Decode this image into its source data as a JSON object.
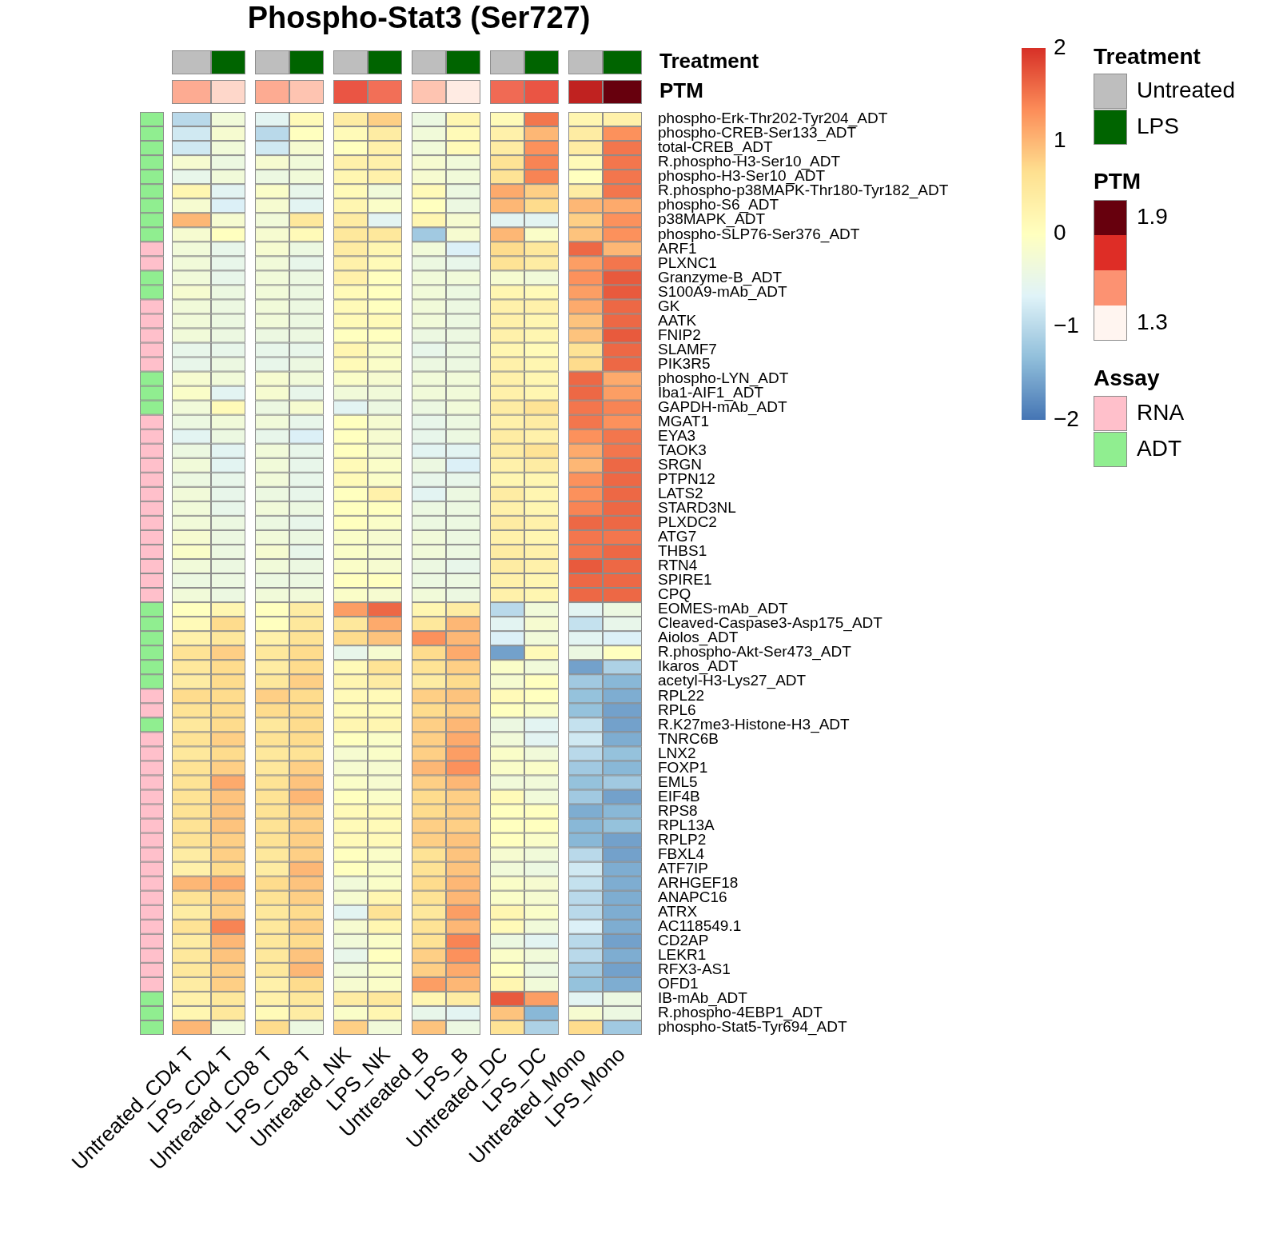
{
  "chart_data": {
    "type": "heatmap",
    "title": "Phospho-Stat3 (Ser727)",
    "columns": [
      "Untreated_CD4 T",
      "LPS_CD4 T",
      "Untreated_CD8 T",
      "LPS_CD8 T",
      "Untreated_NK",
      "LPS_NK",
      "Untreated_B",
      "LPS_B",
      "Untreated_DC",
      "LPS_DC",
      "Untreated_Mono",
      "LPS_Mono"
    ],
    "rows": [
      "phospho-Erk-Thr202-Tyr204_ADT",
      "phospho-CREB-Ser133_ADT",
      "total-CREB_ADT",
      "R.phospho-H3-Ser10_ADT",
      "phospho-H3-Ser10_ADT",
      "R.phospho-p38MAPK-Thr180-Tyr182_ADT",
      "phospho-S6_ADT",
      "p38MAPK_ADT",
      "phospho-SLP76-Ser376_ADT",
      "ARF1",
      "PLXNC1",
      "Granzyme-B_ADT",
      "S100A9-mAb_ADT",
      "GK",
      "AATK",
      "FNIP2",
      "SLAMF7",
      "PIK3R5",
      "phospho-LYN_ADT",
      "Iba1-AIF1_ADT",
      "GAPDH-mAb_ADT",
      "MGAT1",
      "EYA3",
      "TAOK3",
      "SRGN",
      "PTPN12",
      "LATS2",
      "STARD3NL",
      "PLXDC2",
      "ATG7",
      "THBS1",
      "RTN4",
      "SPIRE1",
      "CPQ",
      "EOMES-mAb_ADT",
      "Cleaved-Caspase3-Asp175_ADT",
      "Aiolos_ADT",
      "R.phospho-Akt-Ser473_ADT",
      "Ikaros_ADT",
      "acetyl-H3-Lys27_ADT",
      "RPL22",
      "RPL6",
      "R.K27me3-Histone-H3_ADT",
      "TNRC6B",
      "LNX2",
      "FOXP1",
      "EML5",
      "EIF4B",
      "RPS8",
      "RPL13A",
      "RPLP2",
      "FBXL4",
      "ATF7IP",
      "ARHGEF18",
      "ANAPC16",
      "ATRX",
      "AC118549.1",
      "CD2AP",
      "LEKR1",
      "RFX3-AS1",
      "OFD1",
      "IB-mAb_ADT",
      "R.phospho-4EBP1_ADT",
      "phospho-Stat5-Tyr694_ADT"
    ],
    "values": [
      [
        -1.0,
        -0.3,
        -0.6,
        0.1,
        0.4,
        0.8,
        -0.4,
        0.2,
        0.1,
        1.5,
        0.2,
        0.3
      ],
      [
        -0.8,
        -0.2,
        -1.0,
        0.0,
        0.1,
        0.4,
        -0.3,
        0.1,
        0.3,
        1.0,
        0.4,
        1.3
      ],
      [
        -0.8,
        -0.3,
        -0.8,
        -0.2,
        0.0,
        0.3,
        -0.3,
        0.1,
        0.4,
        1.3,
        0.4,
        1.5
      ],
      [
        -0.2,
        -0.4,
        -0.2,
        -0.3,
        0.3,
        0.3,
        -0.2,
        -0.3,
        0.6,
        1.4,
        0.1,
        1.5
      ],
      [
        -0.5,
        -0.3,
        -0.4,
        -0.3,
        0.2,
        0.3,
        -0.2,
        -0.3,
        0.6,
        1.4,
        0.0,
        1.5
      ],
      [
        0.2,
        -0.6,
        -0.1,
        -0.5,
        0.1,
        -0.3,
        0.1,
        -0.4,
        1.1,
        0.8,
        0.4,
        1.5
      ],
      [
        -0.2,
        -0.7,
        -0.2,
        -0.6,
        0.2,
        -0.1,
        0.0,
        -0.4,
        1.0,
        0.7,
        1.0,
        1.1
      ],
      [
        1.0,
        -0.2,
        -0.3,
        0.5,
        0.4,
        -0.6,
        0.2,
        -0.2,
        -0.6,
        -0.6,
        0.8,
        1.3
      ],
      [
        -0.2,
        0.0,
        -0.2,
        0.1,
        0.5,
        0.5,
        -1.2,
        -0.2,
        1.0,
        -0.1,
        0.9,
        1.3
      ],
      [
        -0.3,
        -0.5,
        -0.2,
        -0.4,
        0.4,
        0.2,
        -0.3,
        -0.7,
        0.7,
        0.5,
        1.6,
        1.0
      ],
      [
        -0.3,
        -0.5,
        -0.3,
        -0.5,
        0.3,
        0.1,
        -0.4,
        -0.5,
        0.6,
        0.4,
        1.2,
        1.5
      ],
      [
        -0.3,
        -0.5,
        -0.3,
        -0.4,
        0.3,
        0.0,
        -0.3,
        -0.3,
        -0.2,
        -0.3,
        1.3,
        1.7
      ],
      [
        -0.2,
        -0.4,
        -0.3,
        -0.4,
        0.1,
        0.0,
        -0.3,
        -0.4,
        0.2,
        0.1,
        1.2,
        1.7
      ],
      [
        -0.3,
        -0.4,
        -0.3,
        -0.4,
        0.1,
        0.0,
        -0.3,
        -0.4,
        0.3,
        0.3,
        1.1,
        1.6
      ],
      [
        -0.3,
        -0.4,
        -0.3,
        -0.4,
        0.1,
        0.1,
        -0.3,
        -0.4,
        0.3,
        0.2,
        0.9,
        1.6
      ],
      [
        -0.3,
        -0.4,
        -0.4,
        -0.4,
        0.0,
        0.0,
        -0.4,
        -0.4,
        0.3,
        0.2,
        0.9,
        1.7
      ],
      [
        -0.5,
        -0.5,
        -0.5,
        -0.5,
        0.2,
        -0.1,
        -0.5,
        -0.4,
        0.2,
        0.1,
        0.6,
        1.6
      ],
      [
        -0.5,
        -0.4,
        -0.5,
        -0.4,
        0.1,
        -0.1,
        -0.4,
        -0.4,
        0.3,
        0.2,
        0.7,
        1.6
      ],
      [
        -0.2,
        -0.3,
        -0.2,
        -0.3,
        -0.1,
        -0.2,
        -0.3,
        -0.3,
        0.3,
        0.2,
        1.6,
        1.1
      ],
      [
        -0.1,
        -0.6,
        -0.2,
        -0.5,
        -0.3,
        -0.3,
        -0.3,
        -0.3,
        0.3,
        0.2,
        1.6,
        1.2
      ],
      [
        -0.3,
        0.1,
        -0.4,
        -0.2,
        -0.6,
        -0.4,
        -0.4,
        -0.3,
        0.4,
        0.6,
        1.5,
        1.4
      ],
      [
        -0.4,
        -0.3,
        -0.3,
        -0.5,
        0.0,
        -0.2,
        -0.5,
        -0.4,
        0.3,
        0.4,
        1.5,
        1.3
      ],
      [
        -0.6,
        -0.4,
        -0.5,
        -0.7,
        0.0,
        -0.2,
        -0.5,
        -0.4,
        0.4,
        0.3,
        1.3,
        1.5
      ],
      [
        -0.4,
        -0.6,
        -0.3,
        -0.5,
        0.0,
        -0.2,
        -0.6,
        -0.6,
        0.4,
        0.6,
        1.1,
        1.5
      ],
      [
        -0.3,
        -0.6,
        -0.3,
        -0.5,
        0.1,
        -0.1,
        -0.4,
        -0.7,
        0.3,
        0.4,
        1.0,
        1.6
      ],
      [
        -0.4,
        -0.5,
        -0.3,
        -0.5,
        0.1,
        -0.1,
        -0.5,
        -0.5,
        0.2,
        0.2,
        1.3,
        1.6
      ],
      [
        -0.3,
        -0.5,
        -0.4,
        -0.5,
        0.0,
        0.3,
        -0.6,
        -0.4,
        0.4,
        0.2,
        1.3,
        1.6
      ],
      [
        -0.3,
        -0.5,
        -0.3,
        -0.4,
        0.0,
        0.0,
        -0.4,
        -0.4,
        0.3,
        0.2,
        1.4,
        1.6
      ],
      [
        -0.3,
        -0.4,
        -0.4,
        -0.5,
        0.0,
        -0.1,
        -0.4,
        -0.4,
        0.4,
        0.3,
        1.6,
        1.6
      ],
      [
        -0.2,
        -0.4,
        -0.3,
        -0.4,
        -0.1,
        -0.2,
        -0.3,
        -0.4,
        0.3,
        0.2,
        1.5,
        1.5
      ],
      [
        -0.1,
        -0.4,
        -0.2,
        -0.5,
        -0.1,
        -0.2,
        -0.3,
        -0.4,
        0.4,
        0.3,
        1.5,
        1.6
      ],
      [
        -0.3,
        -0.4,
        -0.3,
        -0.4,
        -0.1,
        -0.2,
        -0.4,
        -0.5,
        0.4,
        0.3,
        1.7,
        1.6
      ],
      [
        -0.4,
        -0.4,
        -0.4,
        -0.4,
        0.0,
        0.0,
        -0.4,
        -0.4,
        0.3,
        0.2,
        1.6,
        1.6
      ],
      [
        -0.3,
        -0.4,
        -0.3,
        -0.3,
        -0.1,
        -0.2,
        -0.3,
        -0.4,
        0.3,
        0.2,
        1.6,
        1.6
      ],
      [
        0.0,
        0.2,
        0.0,
        0.4,
        1.2,
        1.6,
        0.2,
        0.4,
        -1.0,
        -0.3,
        -0.6,
        -0.4
      ],
      [
        0.1,
        0.7,
        0.0,
        0.5,
        0.5,
        1.1,
        0.5,
        1.0,
        -0.6,
        -0.2,
        -0.9,
        -0.5
      ],
      [
        0.3,
        0.5,
        0.3,
        0.6,
        0.7,
        0.9,
        1.3,
        1.0,
        -0.7,
        -0.3,
        -0.6,
        -0.7
      ],
      [
        0.6,
        0.8,
        0.5,
        0.7,
        -0.5,
        -0.2,
        0.7,
        1.1,
        -1.6,
        0.1,
        -0.4,
        0.0
      ],
      [
        0.5,
        0.7,
        0.4,
        0.7,
        0.1,
        0.6,
        0.6,
        0.8,
        -0.1,
        -0.3,
        -1.6,
        -1.1
      ],
      [
        0.4,
        0.7,
        0.5,
        0.8,
        0.2,
        0.4,
        0.4,
        0.7,
        -0.2,
        0.0,
        -1.2,
        -1.4
      ],
      [
        0.7,
        0.7,
        0.8,
        0.7,
        0.1,
        0.1,
        0.8,
        0.9,
        0.1,
        0.0,
        -1.3,
        -1.5
      ],
      [
        0.6,
        0.7,
        0.7,
        0.7,
        0.1,
        0.1,
        0.7,
        0.8,
        0.0,
        -0.1,
        -1.3,
        -1.6
      ],
      [
        0.5,
        0.7,
        0.5,
        0.7,
        0.2,
        0.2,
        0.8,
        1.0,
        -0.4,
        -0.6,
        -0.9,
        -1.6
      ],
      [
        0.6,
        0.8,
        0.6,
        0.7,
        0.0,
        -0.1,
        0.8,
        1.1,
        -0.3,
        -0.6,
        -0.8,
        -1.5
      ],
      [
        0.5,
        0.7,
        0.5,
        0.6,
        -0.2,
        -0.1,
        0.8,
        1.2,
        -0.1,
        -0.3,
        -1.0,
        -1.3
      ],
      [
        0.6,
        0.8,
        0.5,
        0.8,
        -0.2,
        -0.2,
        1.0,
        1.3,
        -0.1,
        -0.1,
        -1.2,
        -1.4
      ],
      [
        0.6,
        1.1,
        0.6,
        0.9,
        -0.1,
        -0.2,
        0.8,
        1.0,
        -0.3,
        -0.3,
        -1.3,
        -1.2
      ],
      [
        0.6,
        0.9,
        0.6,
        1.0,
        0.0,
        -0.1,
        0.7,
        0.8,
        0.1,
        -0.3,
        -1.2,
        -1.6
      ],
      [
        0.6,
        0.9,
        0.6,
        0.8,
        0.1,
        0.1,
        0.7,
        0.8,
        0.0,
        0.0,
        -1.5,
        -1.4
      ],
      [
        0.6,
        0.9,
        0.6,
        0.8,
        0.1,
        0.1,
        0.8,
        0.8,
        0.0,
        0.0,
        -1.4,
        -1.3
      ],
      [
        0.6,
        0.8,
        0.6,
        0.8,
        0.1,
        0.1,
        0.8,
        0.9,
        0.0,
        -0.1,
        -1.4,
        -1.6
      ],
      [
        0.4,
        0.8,
        0.5,
        0.8,
        0.0,
        -0.1,
        0.6,
        0.9,
        -0.2,
        -0.3,
        -1.0,
        -1.6
      ],
      [
        0.3,
        0.7,
        0.4,
        1.0,
        0.0,
        -0.1,
        0.6,
        0.9,
        -0.3,
        -0.4,
        -0.8,
        -1.5
      ],
      [
        1.0,
        1.1,
        0.7,
        0.9,
        -0.3,
        -0.1,
        0.7,
        1.0,
        -0.1,
        -0.2,
        -0.9,
        -1.5
      ],
      [
        0.6,
        0.8,
        0.6,
        0.8,
        -0.2,
        0.2,
        0.6,
        1.0,
        -0.1,
        -0.2,
        -1.0,
        -1.5
      ],
      [
        0.4,
        0.8,
        0.5,
        0.7,
        -0.6,
        0.6,
        0.5,
        1.2,
        0.2,
        -0.1,
        -1.0,
        -1.5
      ],
      [
        0.6,
        1.4,
        0.5,
        0.8,
        -0.2,
        0.2,
        0.6,
        1.0,
        0.1,
        -0.3,
        -0.7,
        -1.5
      ],
      [
        0.4,
        1.0,
        0.5,
        0.7,
        -0.3,
        -0.1,
        0.6,
        1.4,
        -0.4,
        -0.6,
        -1.0,
        -1.6
      ],
      [
        0.5,
        0.9,
        0.5,
        0.9,
        -0.5,
        0.0,
        0.8,
        1.3,
        -0.1,
        -0.3,
        -1.0,
        -1.5
      ],
      [
        0.5,
        0.8,
        0.5,
        1.0,
        -0.3,
        -0.1,
        0.8,
        1.1,
        0.0,
        -0.4,
        -1.2,
        -1.6
      ],
      [
        0.4,
        0.8,
        0.3,
        0.7,
        -0.2,
        -0.1,
        1.2,
        1.0,
        0.2,
        -0.3,
        -1.3,
        -1.5
      ],
      [
        0.3,
        0.5,
        0.3,
        0.5,
        0.4,
        0.5,
        0.2,
        0.4,
        1.7,
        1.2,
        -0.6,
        -0.4
      ],
      [
        0.2,
        0.5,
        0.1,
        0.4,
        -0.1,
        0.2,
        -0.5,
        -0.6,
        0.9,
        -1.4,
        -0.2,
        -0.4
      ],
      [
        1.0,
        -0.3,
        0.7,
        -0.4,
        0.8,
        -0.3,
        0.9,
        -0.4,
        0.6,
        -1.1,
        0.7,
        -1.2
      ]
    ],
    "colorbar": {
      "range": [
        -2,
        2
      ],
      "ticks": [
        2,
        1,
        0,
        {
          "value": -1,
          "label": "−1"
        },
        {
          "value": -2,
          "label": "−2"
        }
      ],
      "colors": [
        "#4575b4",
        "#91bfdb",
        "#e0f3f8",
        "#ffffbf",
        "#fee090",
        "#fc8d59",
        "#d73027"
      ]
    },
    "treatment": [
      "Untreated",
      "LPS",
      "Untreated",
      "LPS",
      "Untreated",
      "LPS",
      "Untreated",
      "LPS",
      "Untreated",
      "LPS",
      "Untreated",
      "LPS"
    ],
    "treatment_legend": {
      "title": "Treatment",
      "items": [
        {
          "label": "Untreated",
          "color": "#bebebe"
        },
        {
          "label": "LPS",
          "color": "#006400"
        }
      ]
    },
    "ptm": [
      1.45,
      1.36,
      1.45,
      1.4,
      1.62,
      1.57,
      1.4,
      1.32,
      1.58,
      1.62,
      1.75,
      1.9
    ],
    "ptm_legend": {
      "title": "PTM",
      "range": [
        1.3,
        1.9
      ],
      "ticks": [
        1.9,
        1.3
      ],
      "colors": [
        "#fff5f0",
        "#fc9272",
        "#de2d26",
        "#67000d"
      ]
    },
    "assay": [
      "ADT",
      "ADT",
      "ADT",
      "ADT",
      "ADT",
      "ADT",
      "ADT",
      "ADT",
      "ADT",
      "RNA",
      "RNA",
      "ADT",
      "ADT",
      "RNA",
      "RNA",
      "RNA",
      "RNA",
      "RNA",
      "ADT",
      "ADT",
      "ADT",
      "RNA",
      "RNA",
      "RNA",
      "RNA",
      "RNA",
      "RNA",
      "RNA",
      "RNA",
      "RNA",
      "RNA",
      "RNA",
      "RNA",
      "RNA",
      "ADT",
      "ADT",
      "ADT",
      "ADT",
      "ADT",
      "ADT",
      "RNA",
      "RNA",
      "ADT",
      "RNA",
      "RNA",
      "RNA",
      "RNA",
      "RNA",
      "RNA",
      "RNA",
      "RNA",
      "RNA",
      "RNA",
      "RNA",
      "RNA",
      "RNA",
      "RNA",
      "RNA",
      "RNA",
      "RNA",
      "RNA",
      "ADT",
      "ADT",
      "ADT"
    ],
    "assay_legend": {
      "title": "Assay",
      "items": [
        {
          "label": "RNA",
          "color": "#ffc0cb"
        },
        {
          "label": "ADT",
          "color": "#90ee90"
        }
      ]
    }
  }
}
